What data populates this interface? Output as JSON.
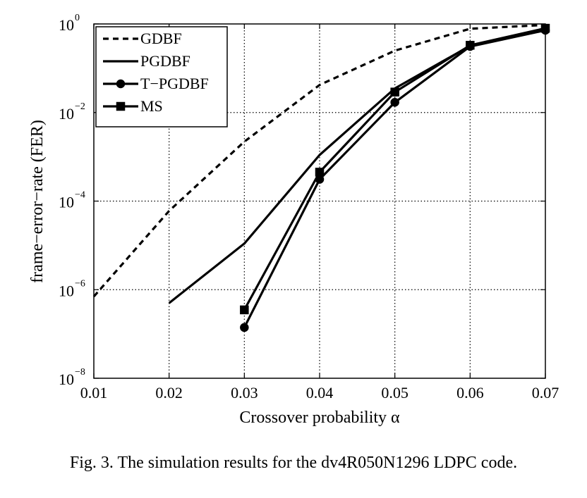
{
  "chart_data": {
    "type": "line",
    "xlabel": "Crossover probability α",
    "ylabel": "frame−error−rate (FER)",
    "xlim": [
      0.01,
      0.07
    ],
    "ylim": [
      1e-08,
      1
    ],
    "y_scale": "log",
    "grid": true,
    "legend_position": "top-left",
    "x_ticks": [
      "0.01",
      "0.02",
      "0.03",
      "0.04",
      "0.05",
      "0.06",
      "0.07"
    ],
    "y_ticks": [
      {
        "base": "10",
        "exp": "0",
        "value": 1
      },
      {
        "base": "10",
        "exp": "−2",
        "value": 0.01
      },
      {
        "base": "10",
        "exp": "−4",
        "value": 0.0001
      },
      {
        "base": "10",
        "exp": "−6",
        "value": 1e-06
      },
      {
        "base": "10",
        "exp": "−8",
        "value": 1e-08
      }
    ],
    "series": [
      {
        "name": "GDBF",
        "style": "dashed",
        "marker": "none",
        "x": [
          0.01,
          0.02,
          0.03,
          0.04,
          0.05,
          0.06,
          0.07
        ],
        "y": [
          7e-07,
          6e-05,
          0.0022,
          0.042,
          0.25,
          0.78,
          0.95
        ]
      },
      {
        "name": "PGDBF",
        "style": "solid",
        "marker": "none",
        "x": [
          0.02,
          0.03,
          0.04,
          0.05,
          0.06,
          0.07
        ],
        "y": [
          5e-07,
          1.1e-05,
          0.0011,
          0.035,
          0.32,
          0.78
        ]
      },
      {
        "name": "T−PGDBF",
        "style": "solid",
        "marker": "circle",
        "x": [
          0.03,
          0.04,
          0.05,
          0.06,
          0.07
        ],
        "y": [
          1.4e-07,
          0.00031,
          0.017,
          0.31,
          0.72
        ]
      },
      {
        "name": "MS",
        "style": "solid",
        "marker": "square",
        "x": [
          0.03,
          0.04,
          0.05,
          0.06,
          0.07
        ],
        "y": [
          3.5e-07,
          0.00045,
          0.029,
          0.33,
          0.8
        ]
      }
    ]
  },
  "caption": "Fig. 3.  The simulation results for the dv4R050N1296 LDPC code."
}
